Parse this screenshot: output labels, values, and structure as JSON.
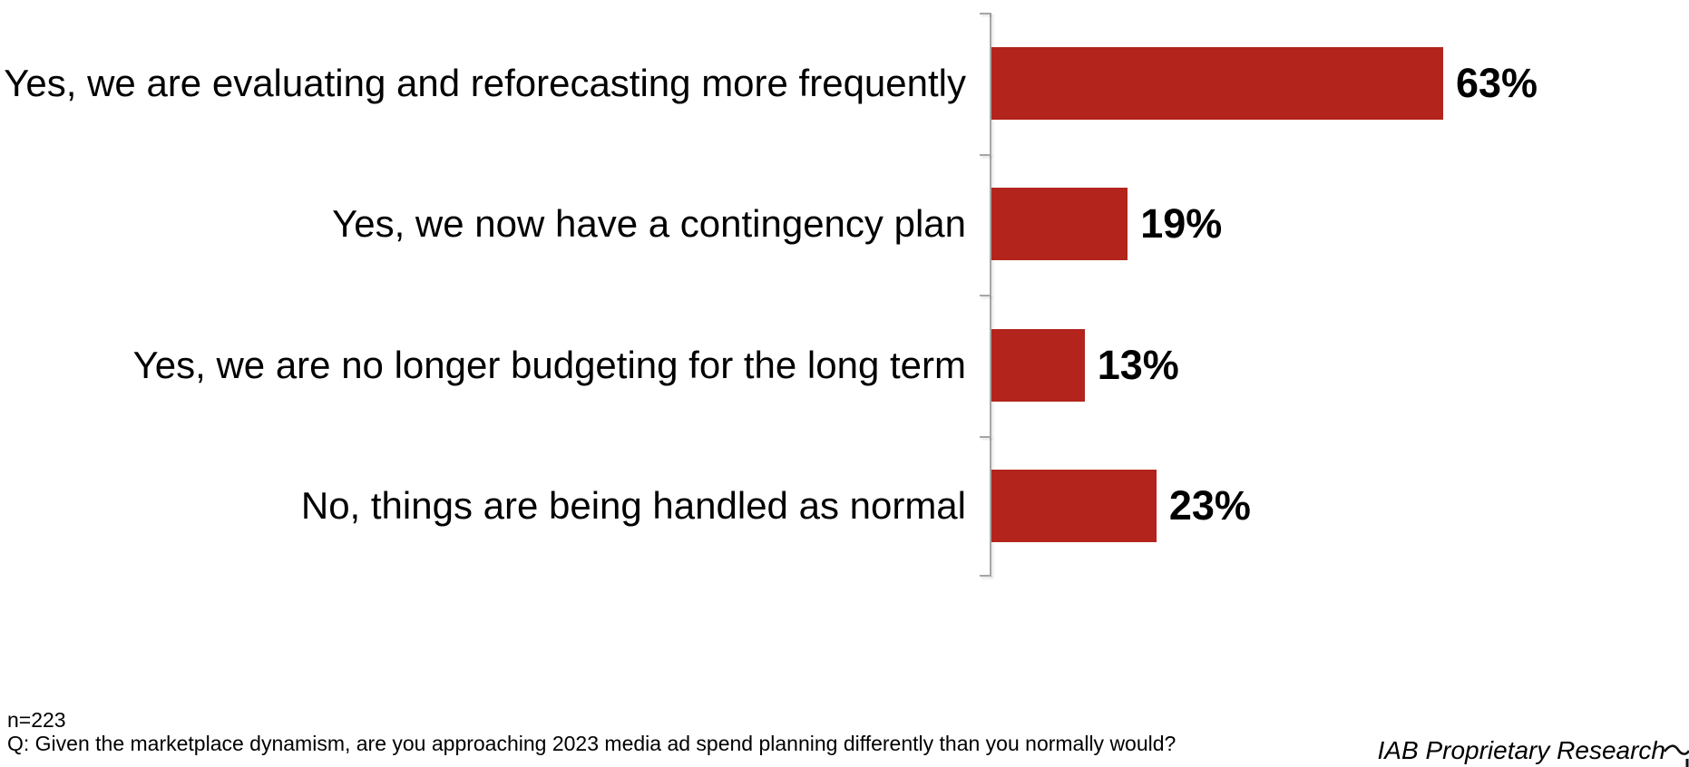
{
  "chart_data": {
    "type": "bar",
    "orientation": "horizontal",
    "title": "",
    "categories": [
      "Yes, we are evaluating and reforecasting more frequently",
      "Yes, we now have a contingency plan",
      "Yes, we are no longer budgeting for the long term",
      "No, things are being handled as normal"
    ],
    "values": [
      63,
      19,
      13,
      23
    ],
    "value_labels": [
      "63%",
      "19%",
      "13%",
      "23%"
    ],
    "xlim": [
      0,
      100
    ],
    "grid": false,
    "legend": "none",
    "bar_color": "#b2241c",
    "axis_color": "#a6a6a6",
    "label_color": "#000000"
  },
  "footer": {
    "sample_size": "n=223",
    "question": "Q: Given the marketplace dynamism, are you approaching 2023 media ad spend planning differently than you normally would?",
    "credit": "IAB Proprietary Research"
  },
  "icons": {
    "partial_logo_swoosh": "partial-logo-swoosh"
  }
}
